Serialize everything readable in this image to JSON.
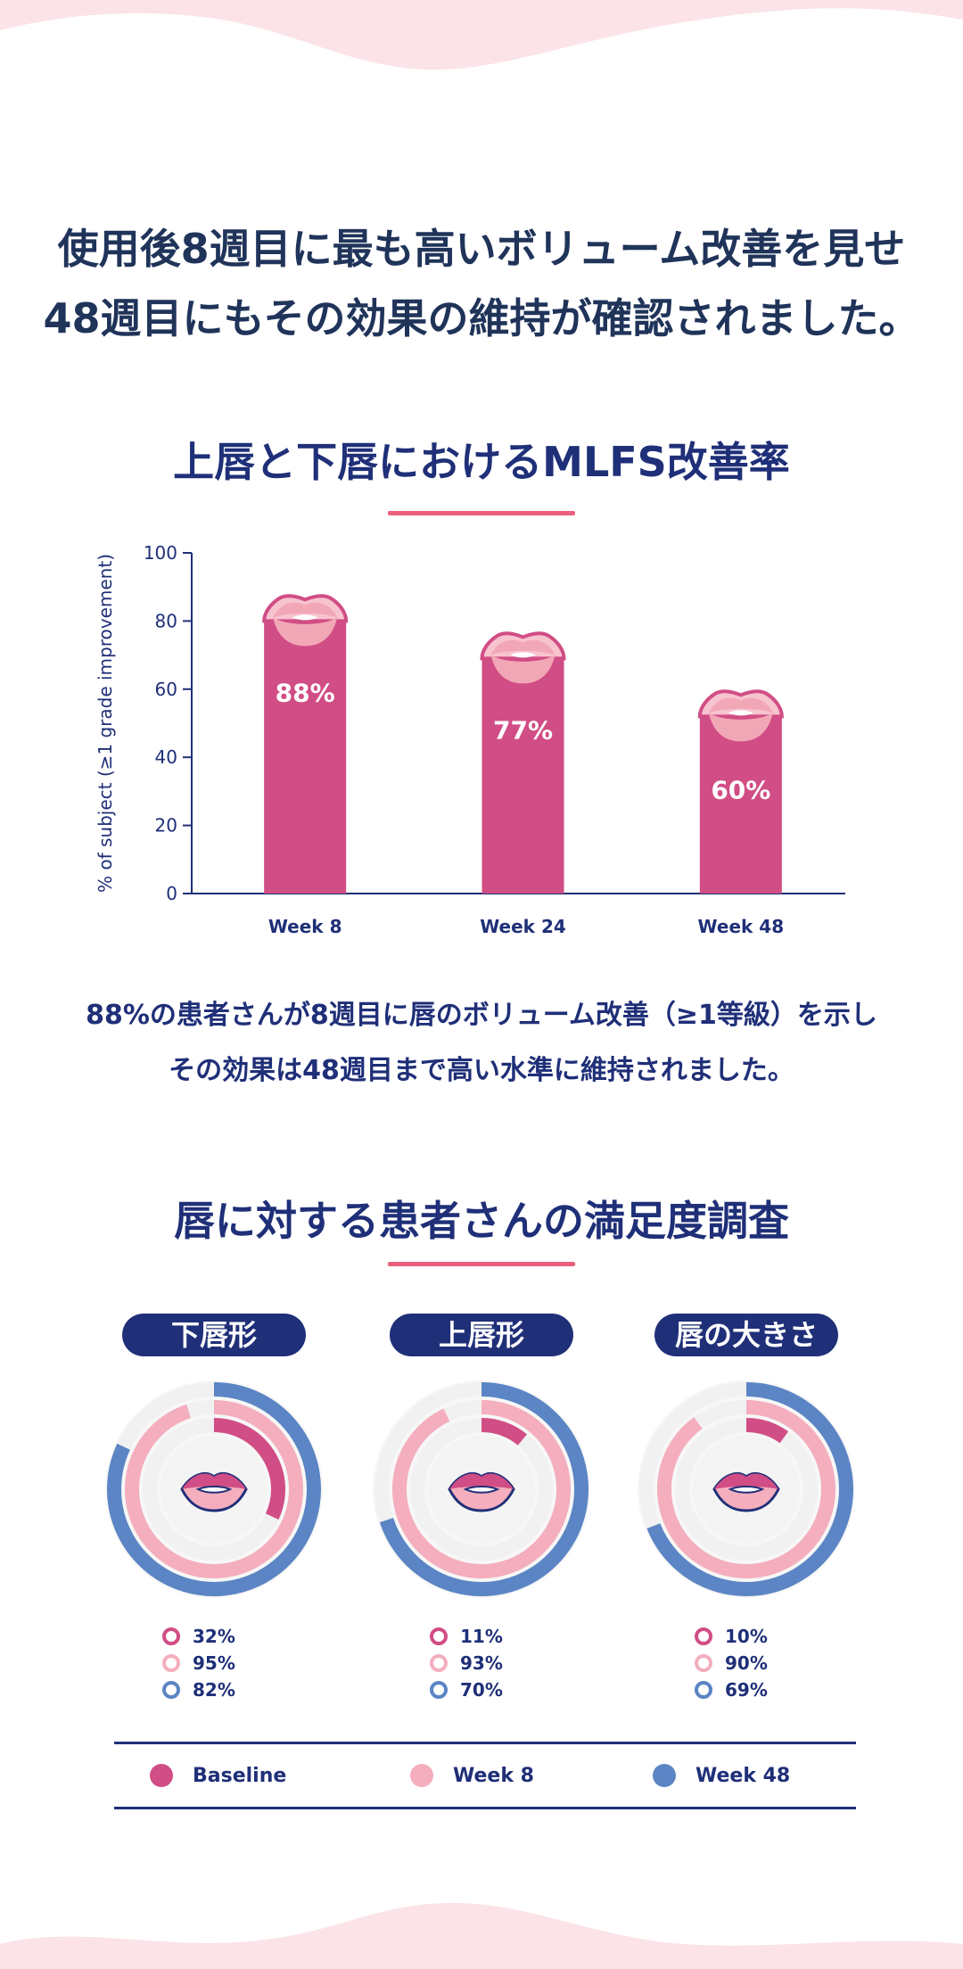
{
  "headline": {
    "line1": "使用後8週目に最も高いボリューム改善を見せ",
    "line2": "48週目にもその効果の維持が確認されました。"
  },
  "section1": {
    "title": "上唇と下唇におけるMLFS改善率"
  },
  "chart_data": [
    {
      "type": "bar",
      "ylabel": "% of subject (≥1 grade improvement)",
      "ylim": [
        0,
        100
      ],
      "yticks": [
        0,
        20,
        40,
        60,
        80,
        100
      ],
      "categories": [
        "Week 8",
        "Week 24",
        "Week 48"
      ],
      "values": [
        80,
        69,
        52
      ],
      "data_labels": [
        "88%",
        "77%",
        "60%"
      ],
      "bar_color": "#d14d85",
      "cap_color": "#f2a7b6",
      "axis_color": "#1f2f78"
    },
    {
      "type": "donut",
      "title": "下唇形",
      "series": [
        {
          "name": "Baseline",
          "value": 32,
          "label": "32%"
        },
        {
          "name": "Week 8",
          "value": 95,
          "label": "95%"
        },
        {
          "name": "Week 48",
          "value": 82,
          "label": "82%"
        }
      ]
    },
    {
      "type": "donut",
      "title": "上唇形",
      "series": [
        {
          "name": "Baseline",
          "value": 11,
          "label": "11%"
        },
        {
          "name": "Week 8",
          "value": 93,
          "label": "93%"
        },
        {
          "name": "Week 48",
          "value": 70,
          "label": "70%"
        }
      ]
    },
    {
      "type": "donut",
      "title": "唇の大きさ",
      "series": [
        {
          "name": "Baseline",
          "value": 10,
          "label": "10%"
        },
        {
          "name": "Week 8",
          "value": 90,
          "label": "90%"
        },
        {
          "name": "Week 48",
          "value": 69,
          "label": "69%"
        }
      ]
    }
  ],
  "description": {
    "line1": "88%の患者さんが8週目に唇のボリューム改善（≥1等級）を示し",
    "line2": "その効果は48週目まで高い水準に維持されました。"
  },
  "section2": {
    "title": "唇に対する患者さんの満足度調査"
  },
  "legend": [
    {
      "label": "Baseline",
      "color": "#d14d85"
    },
    {
      "label": "Week 8",
      "color": "#f4aebd"
    },
    {
      "label": "Week 48",
      "color": "#5b85c4"
    }
  ],
  "colors": {
    "navy": "#1f2f78",
    "accent": "#ea5f7d",
    "track": "#f1f1f1"
  }
}
